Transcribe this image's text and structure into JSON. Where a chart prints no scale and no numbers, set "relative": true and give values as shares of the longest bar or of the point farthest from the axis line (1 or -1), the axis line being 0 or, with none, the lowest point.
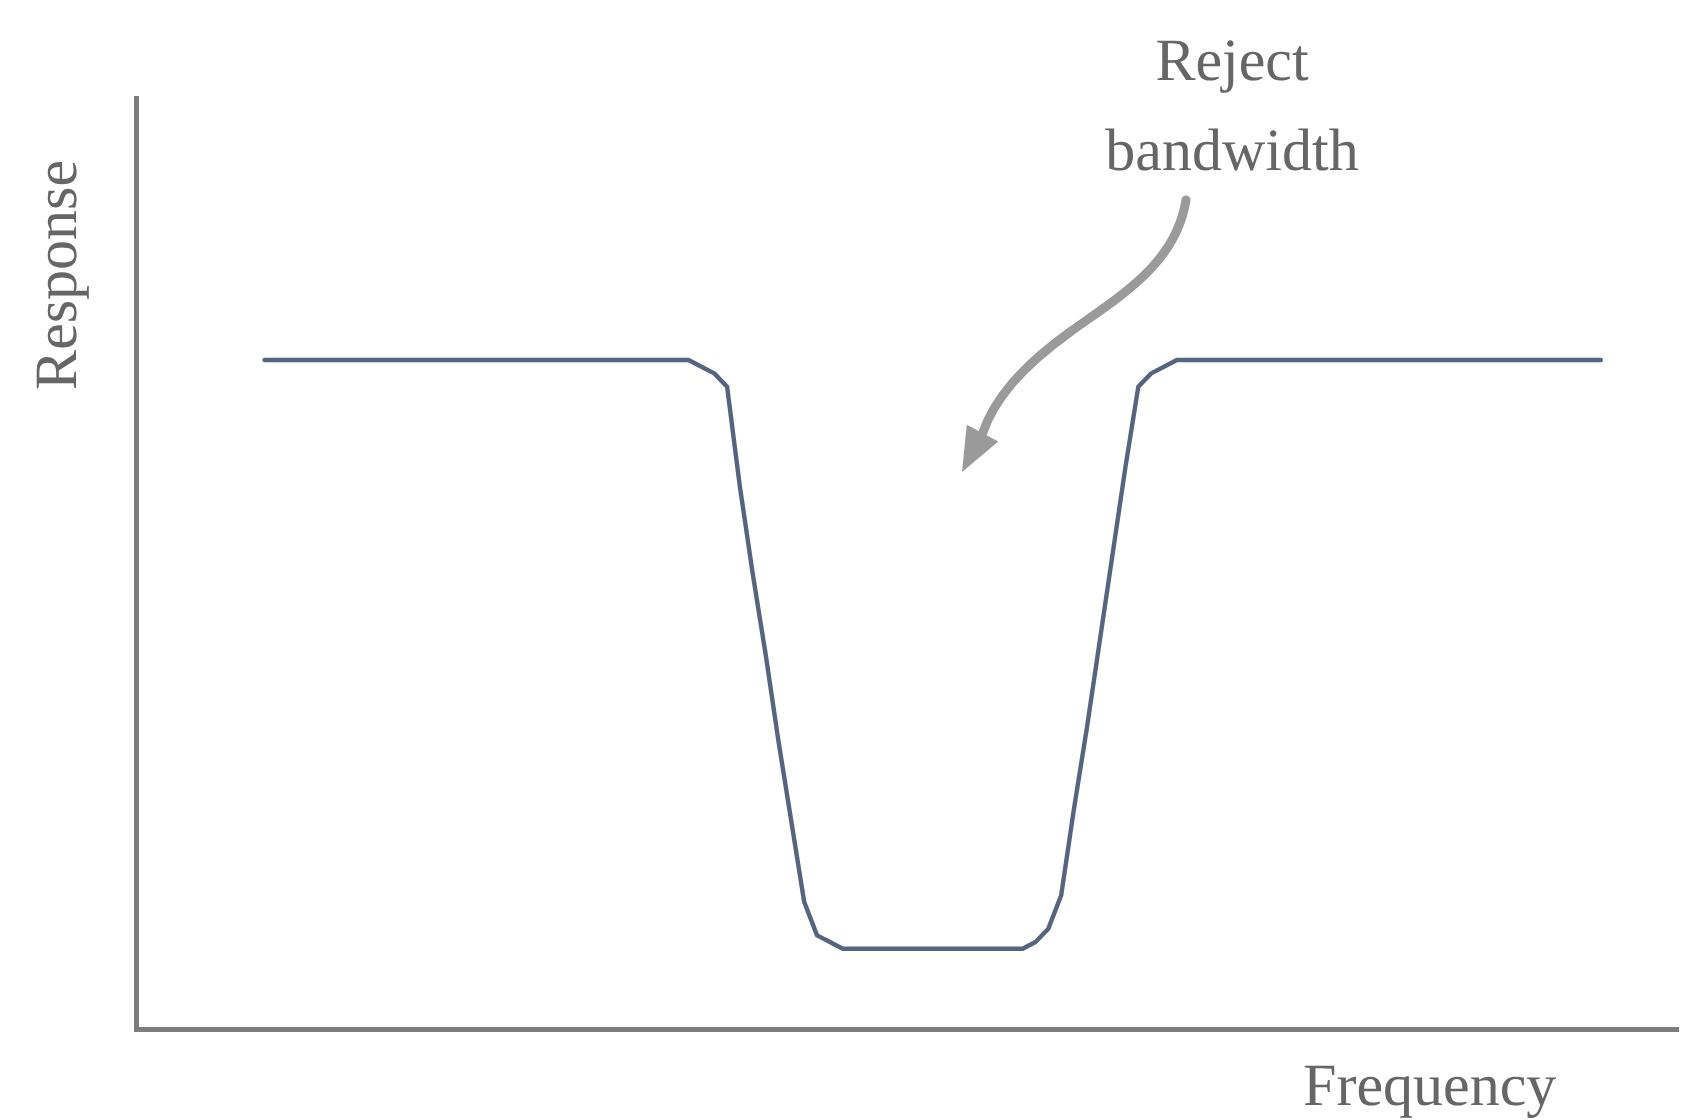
{
  "chart_data": {
    "type": "line",
    "xlabel": "Frequency",
    "ylabel": "Response",
    "annotations": [
      "Reject bandwidth"
    ],
    "relative": true,
    "marker": "none",
    "color": "#56657f",
    "categories": [
      null,
      null,
      null,
      null,
      null,
      null,
      null,
      null,
      null,
      null,
      null,
      null,
      null,
      null,
      null,
      null,
      null,
      null,
      null,
      null,
      null,
      null,
      null,
      null,
      null,
      null,
      null,
      null,
      null,
      null,
      null,
      null,
      null,
      null,
      null,
      null,
      null,
      null,
      null,
      null,
      null,
      null,
      null,
      null,
      null,
      null,
      null,
      null,
      null,
      null,
      null,
      null,
      null,
      null,
      null,
      null,
      null,
      null,
      null,
      null,
      null,
      null,
      null,
      null,
      null,
      null,
      null,
      null,
      null,
      null,
      null,
      null,
      null,
      null,
      null,
      null,
      null,
      null,
      null,
      null,
      null,
      null,
      null,
      null,
      null,
      null,
      null,
      null,
      null,
      null,
      null,
      null,
      null,
      null,
      null,
      null,
      null,
      null,
      null,
      null,
      null,
      null,
      null,
      null,
      null,
      null,
      null,
      null,
      null,
      null,
      null,
      null,
      null,
      null,
      null,
      null,
      null,
      null,
      null,
      null,
      null
    ],
    "values": [
      null,
      null,
      null,
      null,
      null,
      null,
      null,
      null,
      null,
      null,
      1,
      1,
      1,
      1,
      1,
      1,
      1,
      1,
      1,
      1,
      1,
      1,
      1,
      1,
      1,
      1,
      1,
      1,
      1,
      1,
      1,
      1,
      1,
      1,
      1,
      1,
      1,
      1,
      1,
      1,
      1,
      1,
      1,
      1,
      0.99,
      0.98,
      0.96,
      0.81,
      0.68,
      0.56,
      0.43,
      0.31,
      0.19,
      0.14,
      0.13,
      0.12,
      0.12,
      0.12,
      0.12,
      0.12,
      0.12,
      0.12,
      0.12,
      0.12,
      0.12,
      0.12,
      0.12,
      0.12,
      0.12,
      0.12,
      0.13,
      0.15,
      0.2,
      0.33,
      0.45,
      0.58,
      0.71,
      0.84,
      0.96,
      0.98,
      0.99,
      1,
      1,
      1,
      1,
      1,
      1,
      1,
      1,
      1,
      1,
      1,
      1,
      1,
      1,
      1,
      1,
      1,
      1,
      1,
      1,
      1,
      1,
      1,
      1,
      1,
      1,
      1,
      1,
      1,
      1,
      1,
      1,
      1,
      1,
      null,
      null,
      null,
      null,
      null,
      null
    ]
  }
}
